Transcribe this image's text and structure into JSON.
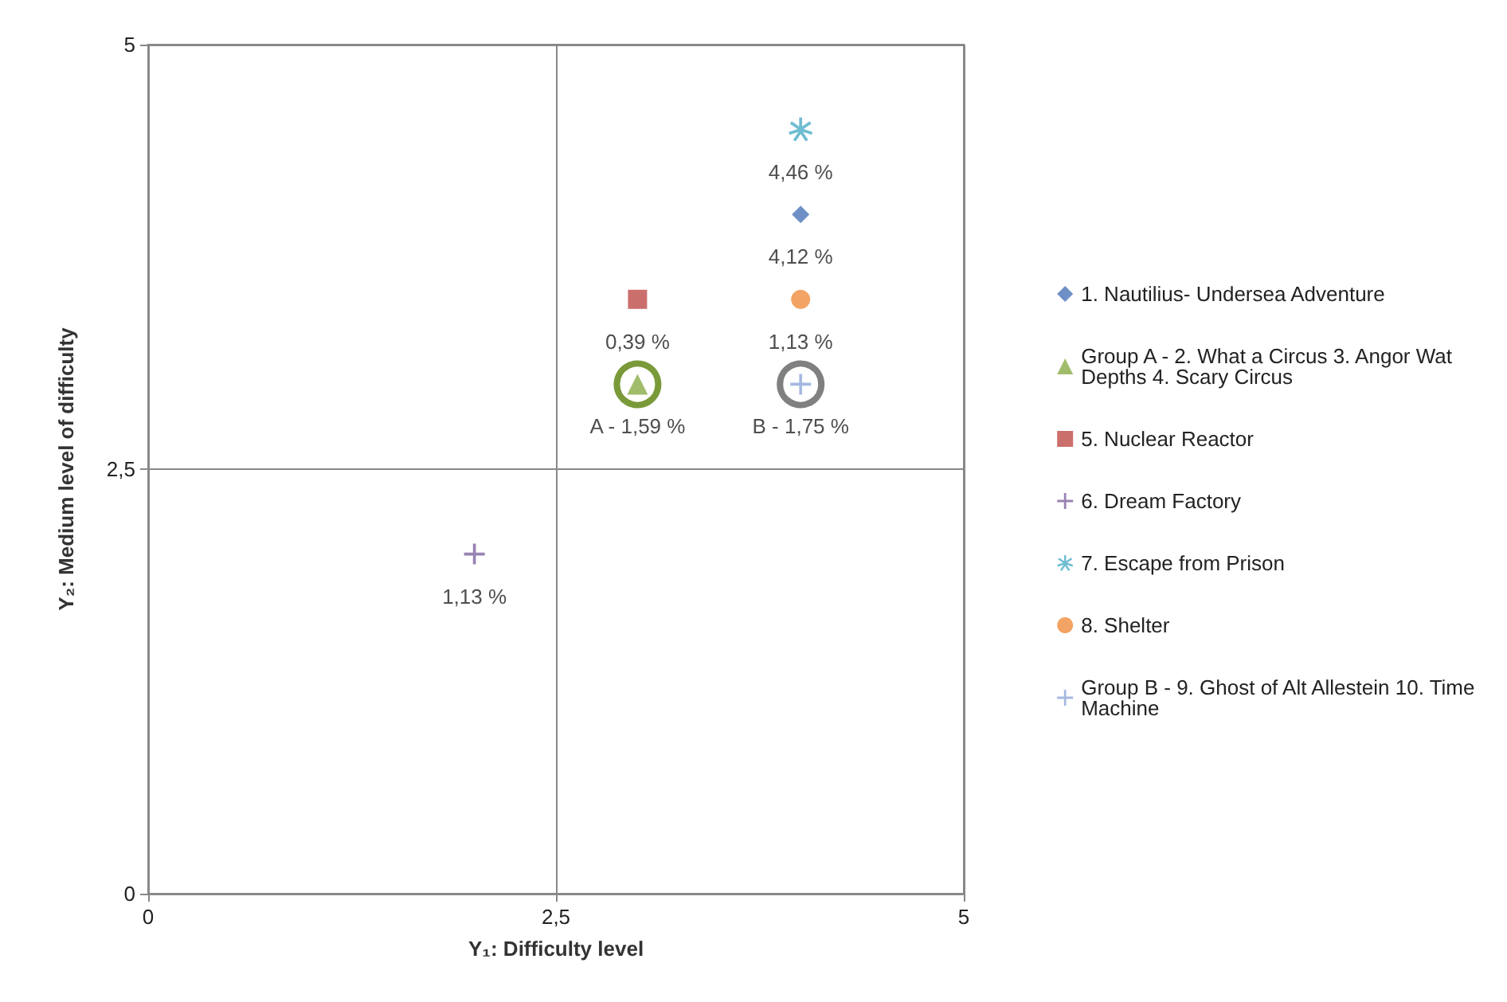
{
  "chart_data": {
    "type": "scatter",
    "xlabel": "Y₁: Difficulty level",
    "ylabel": "Y₂: Medium level of difficulty",
    "xlim": [
      0,
      5
    ],
    "xticks": [
      0,
      {
        "value": 2.5,
        "label": "2,5"
      },
      5
    ],
    "ylim": [
      0,
      5
    ],
    "yticks": [
      0,
      {
        "value": 2.5,
        "label": "2,5"
      },
      5
    ],
    "grid": true,
    "legend": "right",
    "annotations": [
      {
        "text": "4,12 %",
        "x": 4,
        "y": 4
      },
      {
        "text": "A - 1,59 %",
        "x": 3,
        "y": 3
      },
      {
        "text": "0,39 %",
        "x": 3,
        "y": 3.5
      },
      {
        "text": "1,13 %",
        "x": 2,
        "y": 2
      },
      {
        "text": "4,46 %",
        "x": 4,
        "y": 4.5
      },
      {
        "text": "1,13 %",
        "x": 4,
        "y": 3.5
      },
      {
        "text": "B - 1,75 %",
        "x": 4,
        "y": 3
      }
    ],
    "series": [
      {
        "name": "1. Nautilius- Undersea Adventure",
        "color": "#4a74b8",
        "marker": "diamond",
        "x": [
          4
        ],
        "values": [
          4
        ]
      },
      {
        "name": "Group A - 2. What a Circus 3. Angor Wat Depths 4. Scary Circus",
        "color": "#8aac46",
        "marker": "triangle",
        "x": [
          3
        ],
        "values": [
          3
        ]
      },
      {
        "name": "5. Nuclear Reactor",
        "color": "#be4b48",
        "marker": "square",
        "x": [
          3
        ],
        "values": [
          3.5
        ]
      },
      {
        "name": "6. Dream Factory",
        "color": "#7f64a0",
        "marker": "cross",
        "x": [
          2
        ],
        "values": [
          2
        ]
      },
      {
        "name": "7. Escape from Prison",
        "color": "#4bacc6",
        "marker": "star",
        "x": [
          4
        ],
        "values": [
          4.5
        ]
      },
      {
        "name": "8. Shelter",
        "color": "#f08c3c",
        "marker": "circle",
        "x": [
          4
        ],
        "values": [
          3.5
        ]
      },
      {
        "name": "Group B - 9. Ghost of Alt Allestein 10. Time Machine",
        "color": "#8fa8d8",
        "marker": "cross",
        "x": [
          4
        ],
        "values": [
          3
        ]
      },
      {
        "type": "scatter",
        "marker": "circle",
        "line_style": "solid",
        "colors": [
          "#7a9a3a",
          "#808080"
        ],
        "x": [
          3,
          4
        ],
        "values": [
          3,
          3
        ]
      }
    ]
  }
}
